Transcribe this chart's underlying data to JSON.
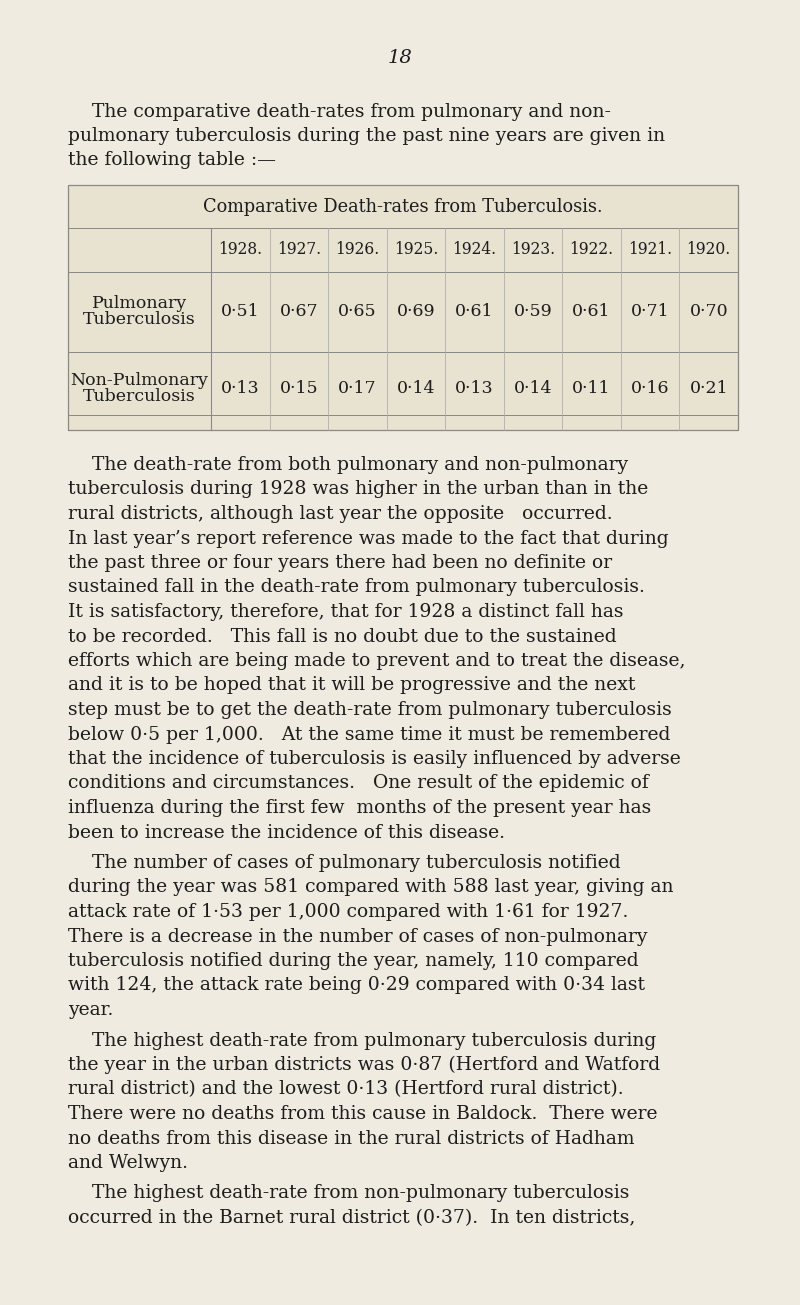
{
  "page_number": "18",
  "bg_color": "#f0ebe0",
  "text_color": "#1c1c1c",
  "intro_lines": [
    "    The comparative death-rates from pulmonary and non-",
    "pulmonary tuberculosis during the past nine years are given in",
    "the following table :—"
  ],
  "table_title": "Comparative Death-rates from Tuberculosis.",
  "years": [
    "1928.",
    "1927.",
    "1926.",
    "1925.",
    "1924.",
    "1923.",
    "1922.",
    "1921.",
    "1920."
  ],
  "row1_label_lines": [
    "Pulmonary",
    "Tuberculosis"
  ],
  "row1_values": [
    "0·51",
    "0·67",
    "0·65",
    "0·69",
    "0·61",
    "0·59",
    "0·61",
    "0·71",
    "0·70"
  ],
  "row2_label_lines": [
    "Non-Pulmonary",
    "Tuberculosis"
  ],
  "row2_values": [
    "0·13",
    "0·15",
    "0·17",
    "0·14",
    "0·13",
    "0·14",
    "0·11",
    "0·16",
    "0·21"
  ],
  "body_blocks": [
    [
      "    The death-rate from both pulmonary and non-pulmonary",
      "tuberculosis during 1928 was higher in the urban than in the",
      "rural districts, although last year the opposite   occurred.",
      "In last year’s report reference was made to the fact that during",
      "the past three or four years there had been no definite or",
      "sustained fall in the death-rate from pulmonary tuberculosis.",
      "It is satisfactory, therefore, that for 1928 a distinct fall has",
      "to be recorded.   This fall is no doubt due to the sustained",
      "efforts which are being made to prevent and to treat the disease,",
      "and it is to be hoped that it will be progressive and the next",
      "step must be to get the death-rate from pulmonary tuberculosis",
      "below 0·5 per 1,000.   At the same time it must be remembered",
      "that the incidence of tuberculosis is easily influenced by adverse",
      "conditions and circumstances.   One result of the epidemic of",
      "influenza during the first few  months of the present year has",
      "been to increase the incidence of this disease."
    ],
    [
      "    The number of cases of pulmonary tuberculosis notified",
      "during the year was 581 compared with 588 last year, giving an",
      "attack rate of 1·53 per 1,000 compared with 1·61 for 1927.",
      "There is a decrease in the number of cases of non-pulmonary",
      "tuberculosis notified during the year, namely, 110 compared",
      "with 124, the attack rate being 0·29 compared with 0·34 last",
      "year."
    ],
    [
      "    The highest death-rate from pulmonary tuberculosis during",
      "the year in the urban districts was 0·87 (Hertford and Watford",
      "rural district) and the lowest 0·13 (Hertford rural district).",
      "There were no deaths from this cause in Baldock.  There were",
      "no deaths from this disease in the rural districts of Hadham",
      "and Welwyn."
    ],
    [
      "    The highest death-rate from non-pulmonary tuberculosis",
      "occurred in the Barnet rural district (0·37).  In ten districts,"
    ]
  ]
}
